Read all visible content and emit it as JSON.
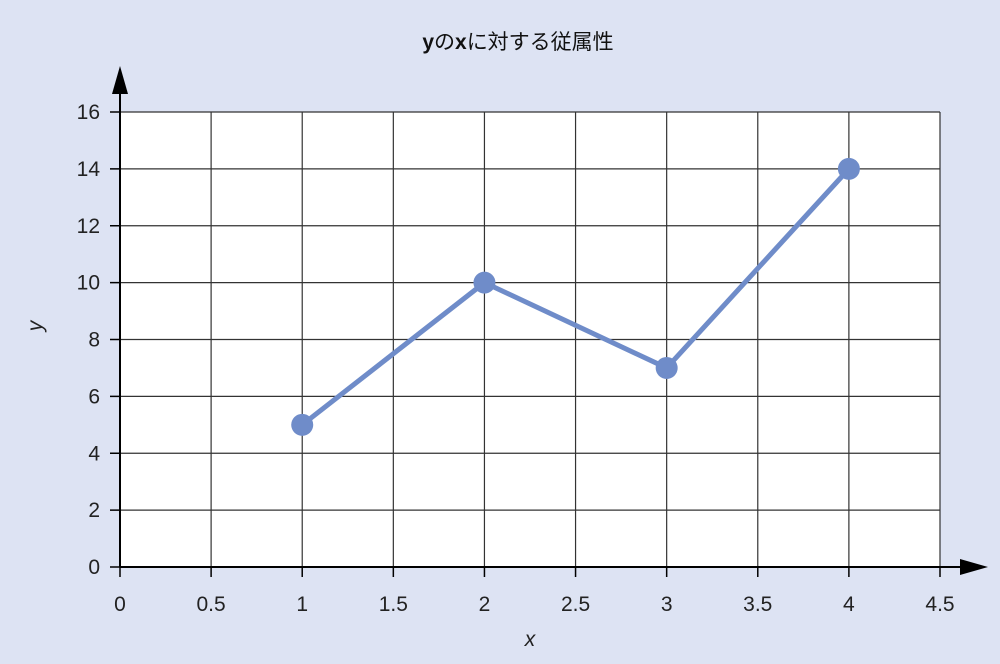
{
  "chart_data": {
    "type": "line",
    "title": {
      "parts": [
        {
          "text": "y",
          "bold": true
        },
        {
          "text": "の",
          "bold": false
        },
        {
          "text": "x",
          "bold": true
        },
        {
          "text": "に対する従属性",
          "bold": false
        }
      ]
    },
    "xlabel": "x",
    "ylabel": "y",
    "xlim": [
      0,
      4.5
    ],
    "ylim": [
      0,
      16
    ],
    "xticks": [
      0,
      0.5,
      1,
      1.5,
      2,
      2.5,
      3,
      3.5,
      4,
      4.5
    ],
    "xtick_labels": [
      "0",
      "0.5",
      "1",
      "1.5",
      "2",
      "2.5",
      "3",
      "3.5",
      "4",
      "4.5"
    ],
    "yticks": [
      0,
      2,
      4,
      6,
      8,
      10,
      12,
      14,
      16
    ],
    "ytick_labels": [
      "0",
      "2",
      "4",
      "6",
      "8",
      "10",
      "12",
      "14",
      "16"
    ],
    "grid": true,
    "series": [
      {
        "x": [
          1,
          2,
          3,
          4
        ],
        "y": [
          5,
          10,
          7,
          14
        ],
        "color": "#6f8cc9"
      }
    ],
    "colors": {
      "background": "#dde3f3",
      "plot_area": "#ffffff",
      "grid": "#333333",
      "axis": "#000000"
    }
  }
}
